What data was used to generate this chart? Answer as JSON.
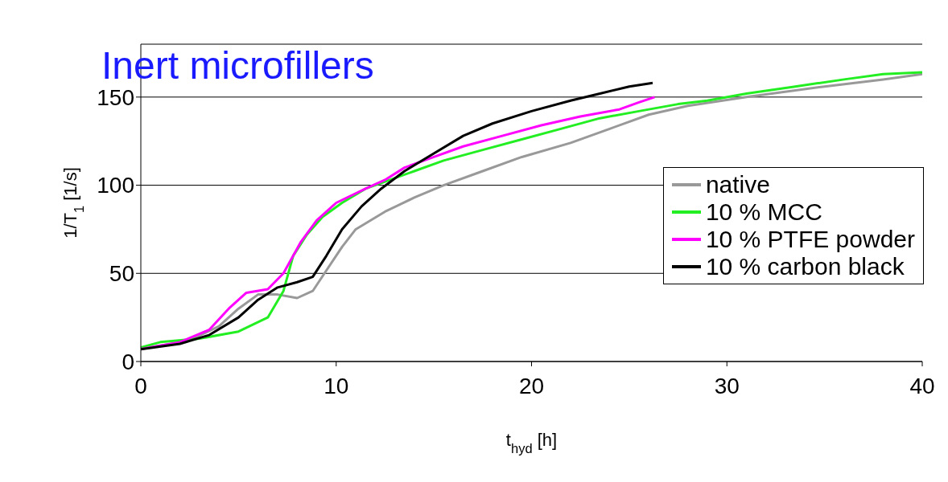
{
  "chart_data": {
    "type": "line",
    "title": "Inert microfillers",
    "xlabel": "t$_{hyd}$ [h]",
    "ylabel": "1/T$_{1}$ [1/s]",
    "xlim": [
      0,
      40
    ],
    "xticks": [
      0,
      10,
      20,
      30,
      40
    ],
    "ylim": [
      0,
      180
    ],
    "yticks": [
      0,
      50,
      100,
      150
    ],
    "grid": "y",
    "legend": "right",
    "series": [
      {
        "name": "native",
        "color": "#999999",
        "x": [
          0,
          2.5,
          4,
          5,
          6,
          7,
          8,
          8.8,
          9.4,
          10.3,
          11,
          12.5,
          14,
          15.5,
          17.5,
          19.5,
          22,
          24,
          26,
          28,
          31,
          35,
          38,
          40
        ],
        "values": [
          7,
          12,
          20,
          30,
          38,
          38,
          36,
          40,
          50,
          65,
          75,
          85,
          93,
          100,
          108,
          116,
          124,
          132,
          140,
          145,
          150,
          156,
          160,
          163
        ]
      },
      {
        "name": "10 % MCC",
        "color": "#22ee22",
        "x": [
          0,
          1,
          3,
          5,
          6.5,
          7.3,
          7.8,
          8.5,
          9.3,
          10.3,
          11.5,
          12.5,
          14,
          15.5,
          17.5,
          19.5,
          21.5,
          23.5,
          25.5,
          27.5,
          29,
          31,
          33.5,
          36,
          38,
          40
        ],
        "values": [
          8,
          11,
          13,
          17,
          25,
          40,
          60,
          72,
          82,
          90,
          98,
          102,
          108,
          114,
          120,
          126,
          132,
          138,
          142,
          146,
          148,
          152,
          156,
          160,
          163,
          164
        ]
      },
      {
        "name": "10 % PTFE powder",
        "color": "#ff00ff",
        "x": [
          0,
          2,
          3.5,
          4.5,
          5.4,
          6.5,
          7.3,
          8.2,
          9,
          10,
          11.5,
          12.5,
          13.5,
          15,
          16.5,
          18.5,
          20.5,
          22.5,
          24.5,
          25.5,
          26.3
        ],
        "values": [
          7,
          11,
          18,
          30,
          39,
          41,
          50,
          68,
          80,
          90,
          98,
          103,
          110,
          116,
          122,
          128,
          134,
          139,
          143,
          147,
          150
        ]
      },
      {
        "name": "10 % carbon black",
        "color": "#000000",
        "x": [
          0,
          2,
          3.5,
          5,
          6,
          7,
          8,
          8.8,
          9.5,
          10.3,
          11.3,
          12.3,
          13.5,
          15,
          16.5,
          18,
          20,
          22,
          23.5,
          25,
          26.2
        ],
        "values": [
          7,
          10,
          15,
          25,
          35,
          42,
          45,
          48,
          60,
          75,
          88,
          98,
          108,
          118,
          128,
          135,
          142,
          148,
          152,
          156,
          158
        ]
      }
    ]
  }
}
